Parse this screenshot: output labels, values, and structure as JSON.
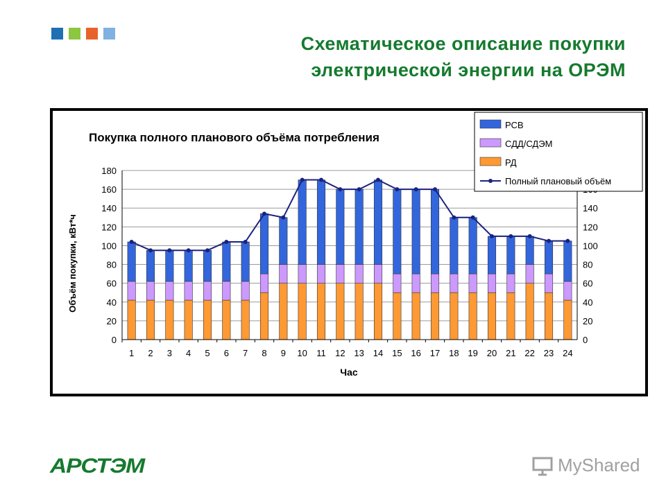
{
  "slide": {
    "title_line1": "Схематическое описание покупки",
    "title_line2": "электрической энергии на ОРЭМ",
    "logo_colors": [
      "#1f6fb5",
      "#8dc63f",
      "#e8632a",
      "#7fb2e0"
    ],
    "brand_name": "АРСТЭМ",
    "watermark": "MyShared"
  },
  "chart_data": {
    "type": "bar",
    "stacked": true,
    "title": "Покупка полного планового объёма потребления",
    "xlabel": "Час",
    "ylabel": "Объём покупки, кВт*ч",
    "ylim": [
      0,
      180
    ],
    "yticks": [
      0,
      20,
      40,
      60,
      80,
      100,
      120,
      140,
      160,
      180
    ],
    "secondary_yticks": [
      0,
      20,
      40,
      60,
      80,
      100,
      120,
      140,
      160,
      180
    ],
    "grid": true,
    "legend_position": "top-right",
    "categories": [
      "1",
      "2",
      "3",
      "4",
      "5",
      "6",
      "7",
      "8",
      "9",
      "10",
      "11",
      "12",
      "13",
      "14",
      "15",
      "16",
      "17",
      "18",
      "19",
      "20",
      "21",
      "22",
      "23",
      "24"
    ],
    "series": [
      {
        "name": "РСВ",
        "type": "bar",
        "color": "#3366dd",
        "values": [
          42,
          33,
          33,
          33,
          33,
          42,
          42,
          64,
          50,
          90,
          90,
          80,
          80,
          90,
          90,
          90,
          90,
          60,
          60,
          40,
          40,
          30,
          35,
          43
        ]
      },
      {
        "name": "СДД/СДЭМ",
        "type": "bar",
        "color": "#cc99ff",
        "values": [
          20,
          20,
          20,
          20,
          20,
          20,
          20,
          20,
          20,
          20,
          20,
          20,
          20,
          20,
          20,
          20,
          20,
          20,
          20,
          20,
          20,
          20,
          20,
          20
        ]
      },
      {
        "name": "РД",
        "type": "bar",
        "color": "#ff9933",
        "values": [
          42,
          42,
          42,
          42,
          42,
          42,
          42,
          50,
          60,
          60,
          60,
          60,
          60,
          60,
          50,
          50,
          50,
          50,
          50,
          50,
          50,
          60,
          50,
          42
        ]
      },
      {
        "name": "Полный плановый объём",
        "type": "line",
        "color": "#1a237e",
        "values": [
          104,
          95,
          95,
          95,
          95,
          104,
          104,
          134,
          130,
          170,
          170,
          160,
          160,
          170,
          160,
          160,
          160,
          130,
          130,
          110,
          110,
          110,
          105,
          105
        ]
      }
    ]
  }
}
